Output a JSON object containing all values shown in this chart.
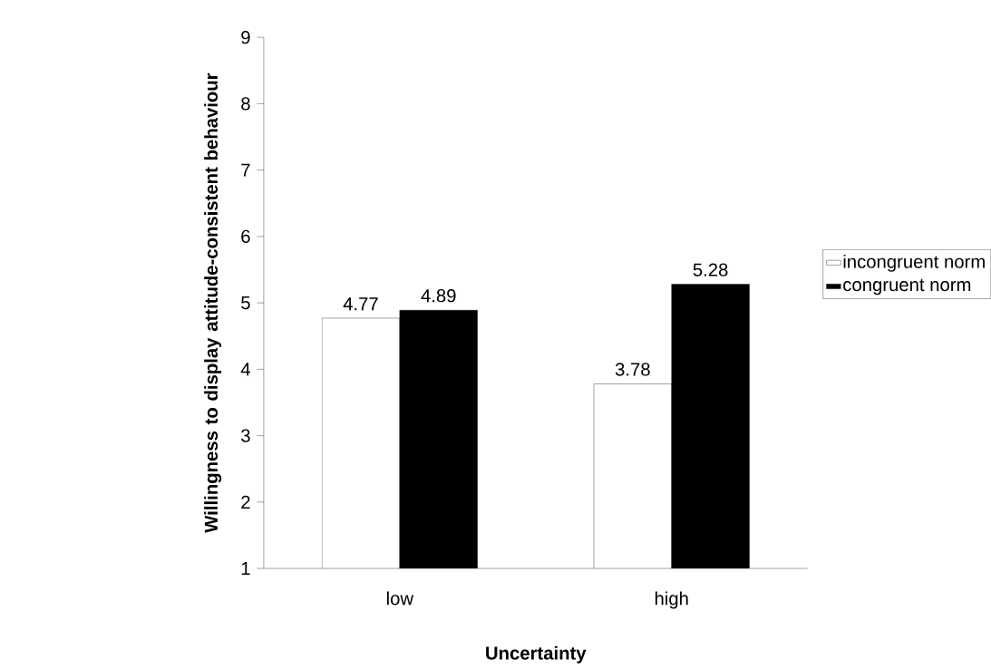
{
  "chart_data": {
    "type": "bar",
    "xlabel": "Uncertainty",
    "ylabel": "Willingness to display attitude-consistent behaviour",
    "categories": [
      "low",
      "high"
    ],
    "series": [
      {
        "name": "incongruent norm",
        "color": "#ffffff",
        "values": [
          4.77,
          3.78
        ]
      },
      {
        "name": "congruent norm",
        "color": "#000000",
        "values": [
          4.89,
          5.28
        ]
      }
    ],
    "ylim": [
      1,
      9
    ],
    "yticks": [
      1,
      2,
      3,
      4,
      5,
      6,
      7,
      8,
      9
    ],
    "grid": false,
    "legend": "right",
    "data_labels": true
  }
}
